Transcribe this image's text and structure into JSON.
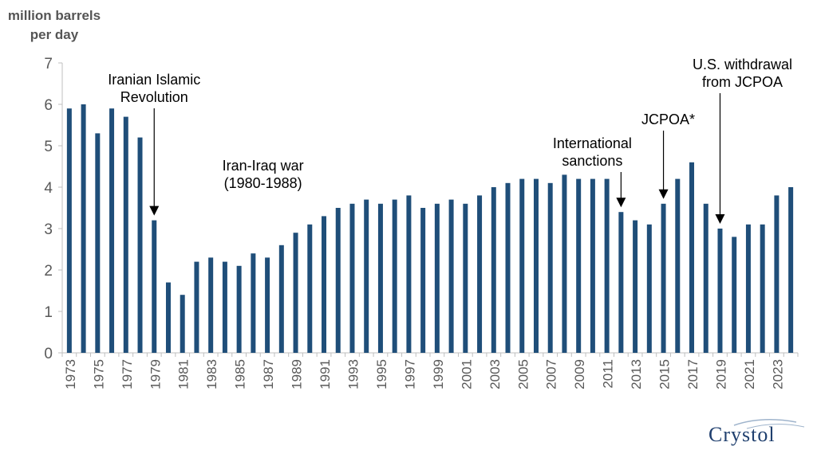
{
  "chart_data": {
    "type": "bar",
    "ylabel": "million barrels per day",
    "ylabel_lines": [
      "million barrels",
      "per day"
    ],
    "ylim": [
      0,
      7
    ],
    "yticks": [
      0,
      1,
      2,
      3,
      4,
      5,
      6,
      7
    ],
    "categories": [
      "1973",
      "1974",
      "1975",
      "1976",
      "1977",
      "1978",
      "1979",
      "1980",
      "1981",
      "1982",
      "1983",
      "1984",
      "1985",
      "1986",
      "1987",
      "1988",
      "1989",
      "1990",
      "1991",
      "1992",
      "1993",
      "1994",
      "1995",
      "1996",
      "1997",
      "1998",
      "1999",
      "2000",
      "2001",
      "2002",
      "2003",
      "2004",
      "2005",
      "2006",
      "2007",
      "2008",
      "2009",
      "2010",
      "2011",
      "2012",
      "2013",
      "2014",
      "2015",
      "2016",
      "2017",
      "2018",
      "2019",
      "2020",
      "2021",
      "2022",
      "2023",
      "2024"
    ],
    "x_tick_labels": [
      "1973",
      "1975",
      "1977",
      "1979",
      "1981",
      "1983",
      "1985",
      "1987",
      "1989",
      "1991",
      "1993",
      "1995",
      "1997",
      "1999",
      "2001",
      "2003",
      "2005",
      "2007",
      "2009",
      "2011",
      "2013",
      "2015",
      "2017",
      "2019",
      "2021",
      "2023"
    ],
    "values": [
      5.9,
      6.0,
      5.3,
      5.9,
      5.7,
      5.2,
      3.2,
      1.7,
      1.4,
      2.2,
      2.3,
      2.2,
      2.1,
      2.4,
      2.3,
      2.6,
      2.9,
      3.1,
      3.3,
      3.5,
      3.6,
      3.7,
      3.6,
      3.7,
      3.8,
      3.5,
      3.6,
      3.7,
      3.6,
      3.8,
      4.0,
      4.1,
      4.2,
      4.2,
      4.1,
      4.3,
      4.2,
      4.2,
      4.2,
      3.4,
      3.2,
      3.1,
      3.6,
      4.2,
      4.6,
      3.6,
      3.0,
      2.8,
      3.1,
      3.1,
      3.8,
      4.0
    ],
    "bar_color": "#1f4e79",
    "grid": false,
    "annotations": [
      {
        "lines": [
          "Iranian Islamic",
          "Revolution"
        ],
        "year": "1979",
        "arrow": true
      },
      {
        "lines": [
          "Iran-Iraq war",
          "(1980-1988)"
        ],
        "year": "1985",
        "arrow": false
      },
      {
        "lines": [
          "International",
          "sanctions"
        ],
        "year": "2012",
        "arrow": true
      },
      {
        "lines": [
          "JCPOA*"
        ],
        "year": "2015",
        "arrow": true
      },
      {
        "lines": [
          "U.S. withdrawal",
          "from JCPOA"
        ],
        "year": "2019",
        "arrow": true
      }
    ]
  },
  "logo": {
    "text": "Crystol"
  }
}
